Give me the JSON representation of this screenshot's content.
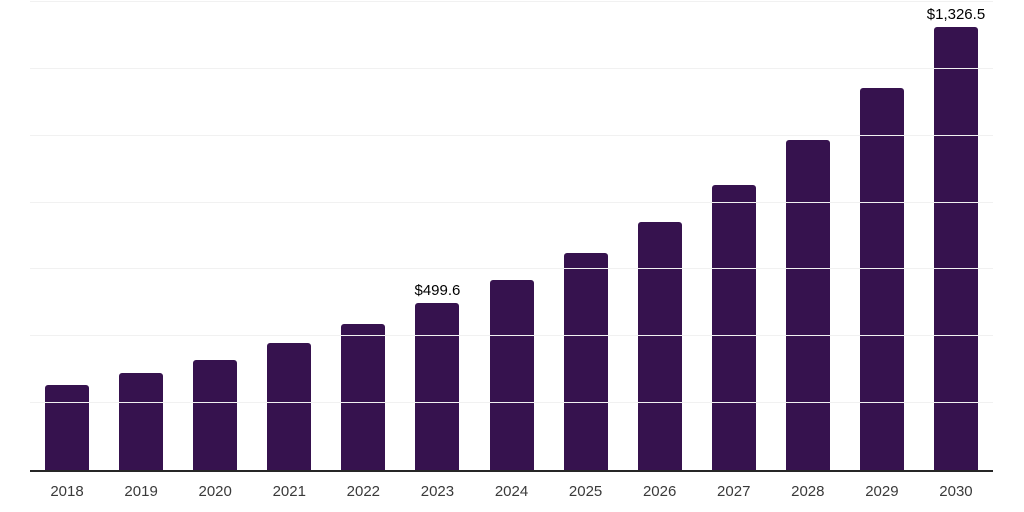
{
  "chart_data": {
    "type": "bar",
    "categories": [
      "2018",
      "2019",
      "2020",
      "2021",
      "2022",
      "2023",
      "2024",
      "2025",
      "2026",
      "2027",
      "2028",
      "2029",
      "2030"
    ],
    "values": [
      253,
      289,
      328,
      379,
      438,
      499.6,
      569,
      650,
      742,
      853,
      987,
      1142,
      1326.5
    ],
    "data_labels": {
      "2023": "$499.6",
      "2030": "$1,326.5"
    },
    "xlabel": "",
    "ylabel": "",
    "ylim": [
      0,
      1400
    ],
    "grid_interval": 200,
    "grid": true,
    "legend": false,
    "y_tick_labels_visible": false,
    "colors": {
      "bar": "#36124E",
      "axis": "#262626",
      "gridline": "#F1F1F1",
      "data_label": "#000000",
      "tick_label": "#3A3A3A",
      "background": "#FFFFFF"
    }
  }
}
